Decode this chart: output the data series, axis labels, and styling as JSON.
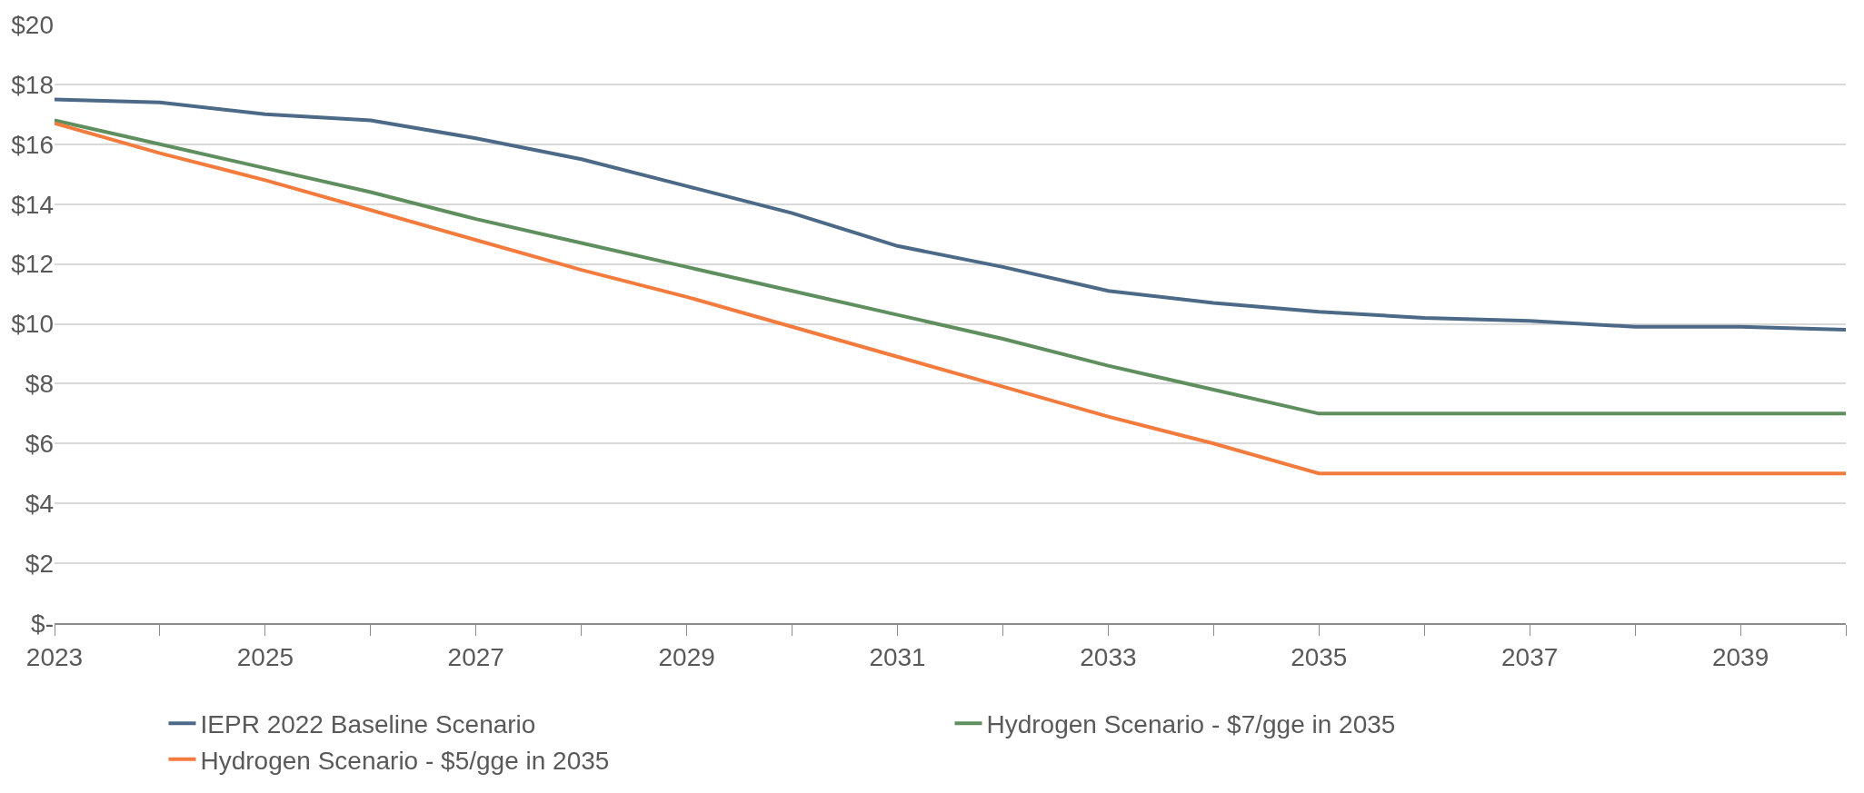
{
  "chart_data": {
    "type": "line",
    "x": [
      2023,
      2024,
      2025,
      2026,
      2027,
      2028,
      2029,
      2030,
      2031,
      2032,
      2033,
      2034,
      2035,
      2036,
      2037,
      2038,
      2039,
      2040
    ],
    "series": [
      {
        "name": "IEPR 2022 Baseline Scenario",
        "color": "#4c6a88",
        "values": [
          17.5,
          17.4,
          17.0,
          16.8,
          16.2,
          15.5,
          14.6,
          13.7,
          12.6,
          11.9,
          11.1,
          10.7,
          10.4,
          10.2,
          10.1,
          9.9,
          9.9,
          9.8
        ]
      },
      {
        "name": "Hydrogen Scenario - $7/gge in 2035",
        "color": "#5f8f5e",
        "values": [
          16.8,
          16.0,
          15.2,
          14.4,
          13.5,
          12.7,
          11.9,
          11.1,
          10.3,
          9.5,
          8.6,
          7.8,
          7.0,
          7.0,
          7.0,
          7.0,
          7.0,
          7.0
        ]
      },
      {
        "name": "Hydrogen Scenario - $5/gge in 2035",
        "color": "#f27b3d",
        "values": [
          16.7,
          15.7,
          14.8,
          13.8,
          12.8,
          11.8,
          10.9,
          9.9,
          8.9,
          7.9,
          6.9,
          6.0,
          5.0,
          5.0,
          5.0,
          5.0,
          5.0,
          5.0
        ]
      }
    ],
    "xlim": [
      2023,
      2040
    ],
    "xticks": [
      2023,
      {
        "value": 2024,
        "label": null
      },
      2025,
      {
        "value": 2026,
        "label": null
      },
      2027,
      {
        "value": 2028,
        "label": null
      },
      2029,
      {
        "value": 2030,
        "label": null
      },
      2031,
      {
        "value": 2032,
        "label": null
      },
      2033,
      {
        "value": 2034,
        "label": null
      },
      2035,
      {
        "value": 2036,
        "label": null
      },
      2037,
      {
        "value": 2038,
        "label": null
      },
      2039,
      {
        "value": 2040,
        "label": null
      }
    ],
    "ylim": [
      0,
      20
    ],
    "yticks": [
      {
        "value": 0,
        "label": "$-"
      },
      {
        "value": 2,
        "label": "$2"
      },
      {
        "value": 4,
        "label": "$4"
      },
      {
        "value": 6,
        "label": "$6"
      },
      {
        "value": 8,
        "label": "$8"
      },
      {
        "value": 10,
        "label": "$10"
      },
      {
        "value": 12,
        "label": "$12"
      },
      {
        "value": 14,
        "label": "$14"
      },
      {
        "value": 16,
        "label": "$16"
      },
      {
        "value": 18,
        "label": "$18"
      },
      {
        "value": 20,
        "label": "$20"
      }
    ],
    "grid": "y",
    "legend": "bottom",
    "line_style": "solid",
    "marker": "none"
  }
}
